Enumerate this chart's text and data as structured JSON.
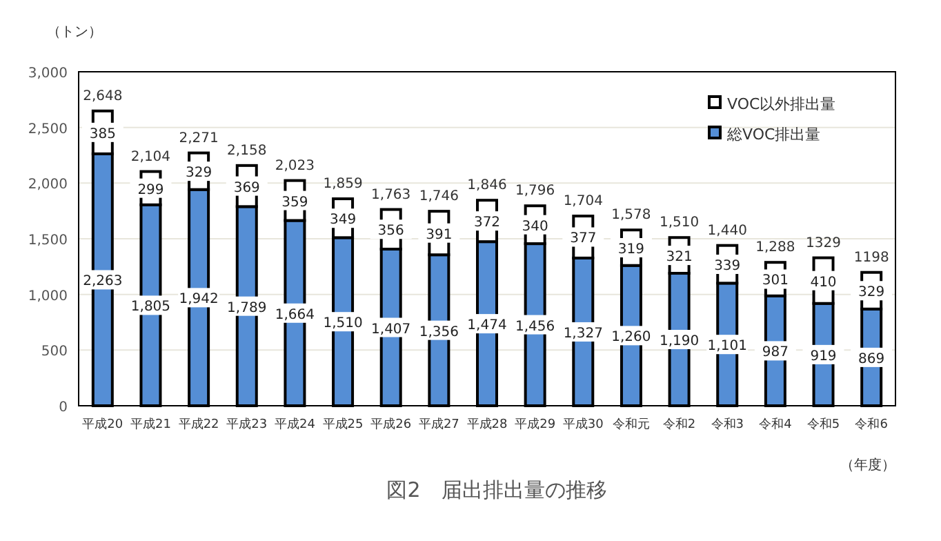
{
  "chart_data": {
    "type": "bar",
    "stacked": true,
    "title": "図2　届出排出量の推移",
    "ylabel": "（トン）",
    "xlabel": "（年度）",
    "categories": [
      "平成20",
      "平成21",
      "平成22",
      "平成23",
      "平成24",
      "平成25",
      "平成26",
      "平成27",
      "平成28",
      "平成29",
      "平成30",
      "令和元",
      "令和2",
      "令和3",
      "令和4",
      "令和5",
      "令和6"
    ],
    "series": [
      {
        "name": "総VOC排出量",
        "color": "#558ed5",
        "values": [
          2263,
          1805,
          1942,
          1789,
          1664,
          1510,
          1407,
          1356,
          1474,
          1456,
          1327,
          1260,
          1190,
          1101,
          987,
          919,
          869
        ],
        "value_labels": [
          "2,263",
          "1,805",
          "1,942",
          "1,789",
          "1,664",
          "1,510",
          "1,407",
          "1,356",
          "1,474",
          "1,456",
          "1,327",
          "1,260",
          "1,190",
          "1,101",
          "987",
          "919",
          "869"
        ]
      },
      {
        "name": "VOC以外排出量",
        "color": "#ffffff",
        "values": [
          385,
          299,
          329,
          369,
          359,
          349,
          356,
          391,
          372,
          340,
          377,
          319,
          321,
          339,
          301,
          410,
          329
        ],
        "value_labels": [
          "385",
          "299",
          "329",
          "369",
          "359",
          "349",
          "356",
          "391",
          "372",
          "340",
          "377",
          "319",
          "321",
          "339",
          "301",
          "410",
          "329"
        ]
      }
    ],
    "totals": [
      "2,648",
      "2,104",
      "2,271",
      "2,158",
      "2,023",
      "1,859",
      "1,763",
      "1,746",
      "1,846",
      "1,796",
      "1,704",
      "1,578",
      "1,510",
      "1,440",
      "1,288",
      "1329",
      "1198"
    ],
    "ylim": [
      0,
      3000
    ],
    "yticks": [
      {
        "value": 0,
        "label": "0"
      },
      {
        "value": 500,
        "label": "500"
      },
      {
        "value": 1000,
        "label": "1,000"
      },
      {
        "value": 1500,
        "label": "1,500"
      },
      {
        "value": 2000,
        "label": "2,000"
      },
      {
        "value": 2500,
        "label": "2,500"
      },
      {
        "value": 3000,
        "label": "3,000"
      }
    ],
    "grid": "y",
    "legend": "top right"
  }
}
